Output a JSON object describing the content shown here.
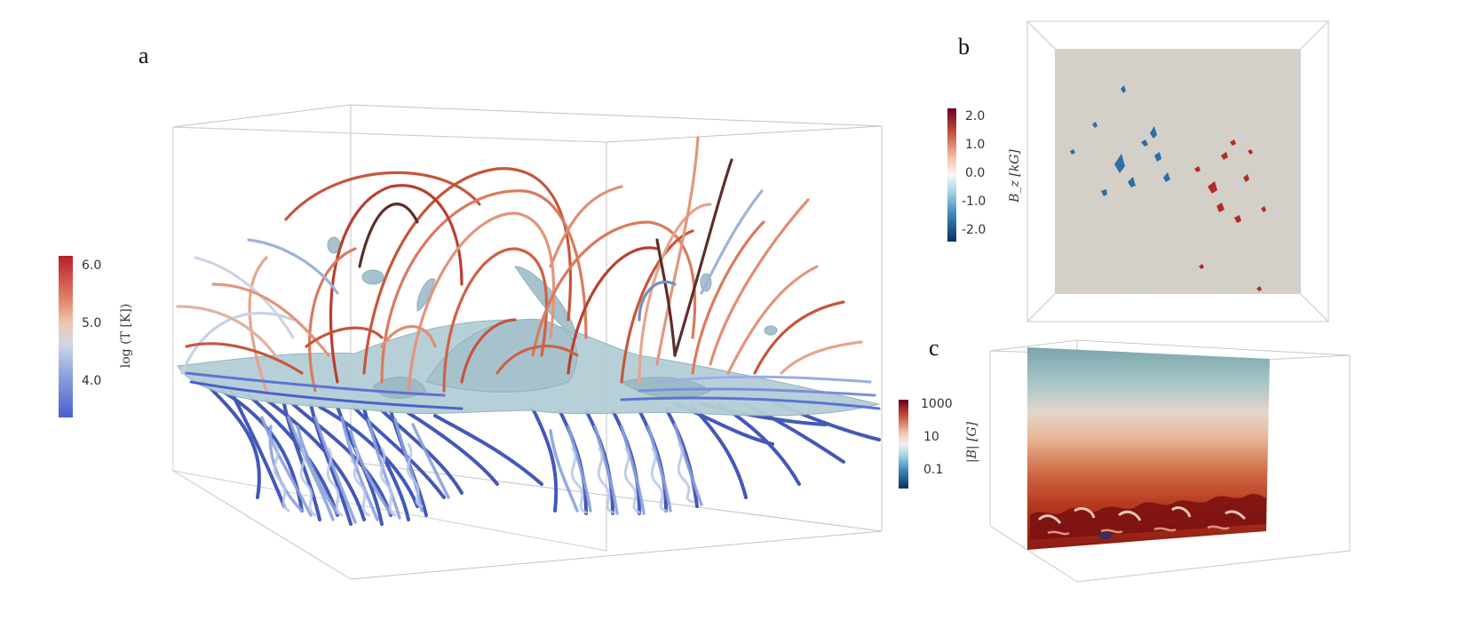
{
  "panels": {
    "a": "a",
    "b": "b",
    "c": "c"
  },
  "colorbar_temperature": {
    "title": "log (T [K])",
    "ticks": [
      "6.0",
      "5.0",
      "4.0"
    ],
    "colormap": [
      "#b4202b",
      "#e07b62",
      "#eec7b4",
      "#cfd6e8",
      "#8aa0dc",
      "#4a5fcf"
    ]
  },
  "colorbar_bz": {
    "title": "B_z [kG]",
    "ticks": [
      "2.0",
      "1.0",
      "0.0",
      "-1.0",
      "-2.0"
    ],
    "colormap": [
      "#67001f",
      "#c44f3c",
      "#f4c8ad",
      "#f7f7f7",
      "#a9d6e6",
      "#3a86b9",
      "#053061"
    ]
  },
  "colorbar_b": {
    "title": "|B| [G]",
    "ticks": [
      "1000",
      "10",
      "0.1"
    ],
    "colormap": [
      "#67001f",
      "#c44f3c",
      "#f4c8ad",
      "#f1f1f1",
      "#a9d6e6",
      "#3a86b9",
      "#053061"
    ]
  }
}
